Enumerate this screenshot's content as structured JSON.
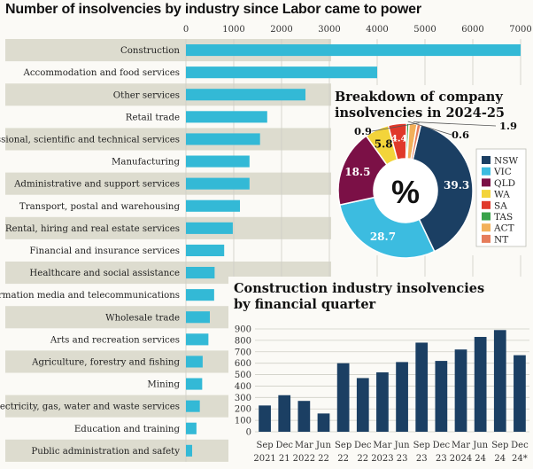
{
  "title": "Number of insolvencies by industry since Labor came to power",
  "colors": {
    "bar": "#33b9d6",
    "band": "#dddccf",
    "grid": "#cfcfc6",
    "nsw": "#1b3f63",
    "vic": "#3cbce0",
    "qld": "#7b1046",
    "wa": "#f3d43a",
    "sa": "#e0392a",
    "tas": "#39a24a",
    "act": "#f3b05a",
    "nt": "#e67c5a",
    "quarterBar": "#1b3f63"
  },
  "chart_data": [
    {
      "type": "bar",
      "orientation": "horizontal",
      "categories": [
        "Construction",
        "Accommodation and food services",
        "Other services",
        "Retail trade",
        "Professional, scientific and technical services",
        "Manufacturing",
        "Administrative and support services",
        "Transport, postal and warehousing",
        "Rental, hiring and real estate services",
        "Financial and insurance services",
        "Healthcare and social assistance",
        "Information media and telecommunications",
        "Wholesale trade",
        "Arts and recreation services",
        "Agriculture, forestry and fishing",
        "Mining",
        "Electricity, gas, water and waste services",
        "Education and training",
        "Public administration and safety"
      ],
      "values": [
        7000,
        4000,
        2500,
        1700,
        1550,
        1330,
        1330,
        1130,
        980,
        800,
        600,
        590,
        500,
        470,
        350,
        340,
        290,
        220,
        130
      ],
      "xlim": [
        0,
        7000
      ],
      "xticks": [
        0,
        1000,
        2000,
        3000,
        4000,
        5000,
        6000,
        7000
      ],
      "grid": true
    },
    {
      "type": "pie",
      "subtype": "donut",
      "title": "Breakdown of company insolvencies in 2024-25",
      "center_label": "%",
      "categories": [
        "NSW",
        "VIC",
        "QLD",
        "WA",
        "SA",
        "TAS",
        "ACT",
        "NT"
      ],
      "values": [
        39.3,
        28.7,
        18.5,
        5.8,
        4.4,
        0.6,
        1.9,
        0.9
      ],
      "labels": [
        "39.3",
        "28.7",
        "18.5",
        "5.8",
        "4.4",
        "0.6",
        "1.9",
        "0.9"
      ],
      "legend": "right"
    },
    {
      "type": "bar",
      "title": "Construction industry insolvencies by financial quarter",
      "categories": [
        [
          "Sep",
          "2021"
        ],
        [
          "Dec",
          "21"
        ],
        [
          "Mar",
          "2022"
        ],
        [
          "Jun",
          "22"
        ],
        [
          "Sep",
          "22"
        ],
        [
          "Dec",
          "22"
        ],
        [
          "Mar",
          "2023"
        ],
        [
          "Jun",
          "23"
        ],
        [
          "Sep",
          "23"
        ],
        [
          "Dec",
          "23"
        ],
        [
          "Mar",
          "2024"
        ],
        [
          "Jun",
          "24"
        ],
        [
          "Sep",
          "24"
        ],
        [
          "Dec",
          "24*"
        ]
      ],
      "values": [
        230,
        320,
        270,
        160,
        600,
        470,
        520,
        610,
        780,
        620,
        720,
        830,
        890,
        670
      ],
      "ylim": [
        0,
        900
      ],
      "yticks": [
        0,
        100,
        200,
        300,
        400,
        500,
        600,
        700,
        800,
        900
      ],
      "grid": true
    }
  ]
}
